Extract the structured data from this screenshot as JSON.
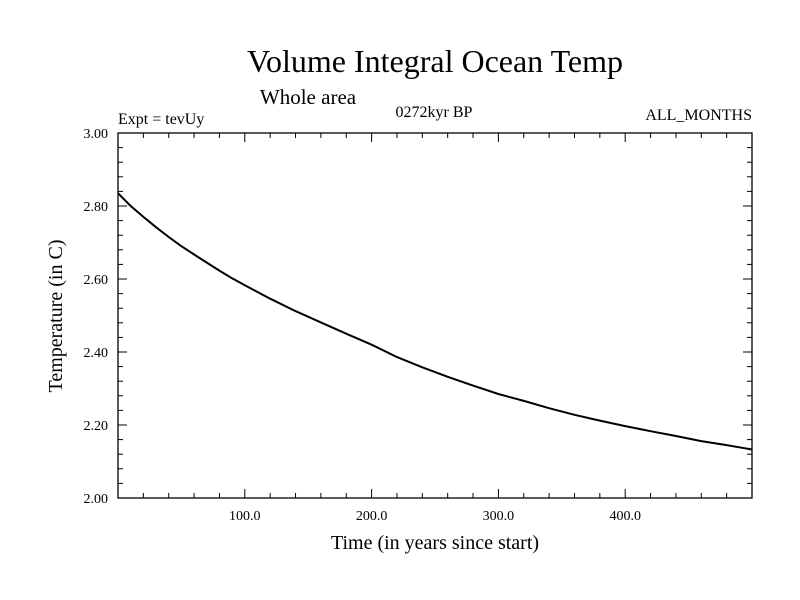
{
  "chart_data": {
    "type": "line",
    "title": "Volume Integral Ocean Temp",
    "subtitle": "Whole area",
    "experiment": "Expt = tevUy",
    "period": "0272kyr BP",
    "months": "ALL_MONTHS",
    "xlabel": "Time (in years since start)",
    "ylabel": "Temperature (in C)",
    "xlim": [
      0,
      500
    ],
    "ylim": [
      2.0,
      3.0
    ],
    "x_ticks": [
      100,
      200,
      300,
      400
    ],
    "x_tick_labels": [
      "100.0",
      "200.0",
      "300.0",
      "400.0"
    ],
    "y_ticks": [
      2.0,
      2.2,
      2.4,
      2.6,
      2.8,
      3.0
    ],
    "y_tick_labels": [
      "2.00",
      "2.20",
      "2.40",
      "2.60",
      "2.80",
      "3.00"
    ],
    "grid": false,
    "series": [
      {
        "color": "#000000",
        "x": [
          0,
          10,
          20,
          30,
          40,
          50,
          60,
          70,
          80,
          90,
          100,
          120,
          140,
          160,
          180,
          200,
          220,
          240,
          260,
          280,
          300,
          320,
          340,
          360,
          380,
          400,
          420,
          440,
          460,
          480,
          490,
          500
        ],
        "y": [
          2.835,
          2.8,
          2.77,
          2.742,
          2.715,
          2.69,
          2.667,
          2.645,
          2.623,
          2.602,
          2.583,
          2.546,
          2.512,
          2.481,
          2.45,
          2.42,
          2.386,
          2.358,
          2.332,
          2.308,
          2.285,
          2.266,
          2.246,
          2.228,
          2.212,
          2.197,
          2.183,
          2.17,
          2.156,
          2.145,
          2.139,
          2.133
        ]
      }
    ]
  }
}
